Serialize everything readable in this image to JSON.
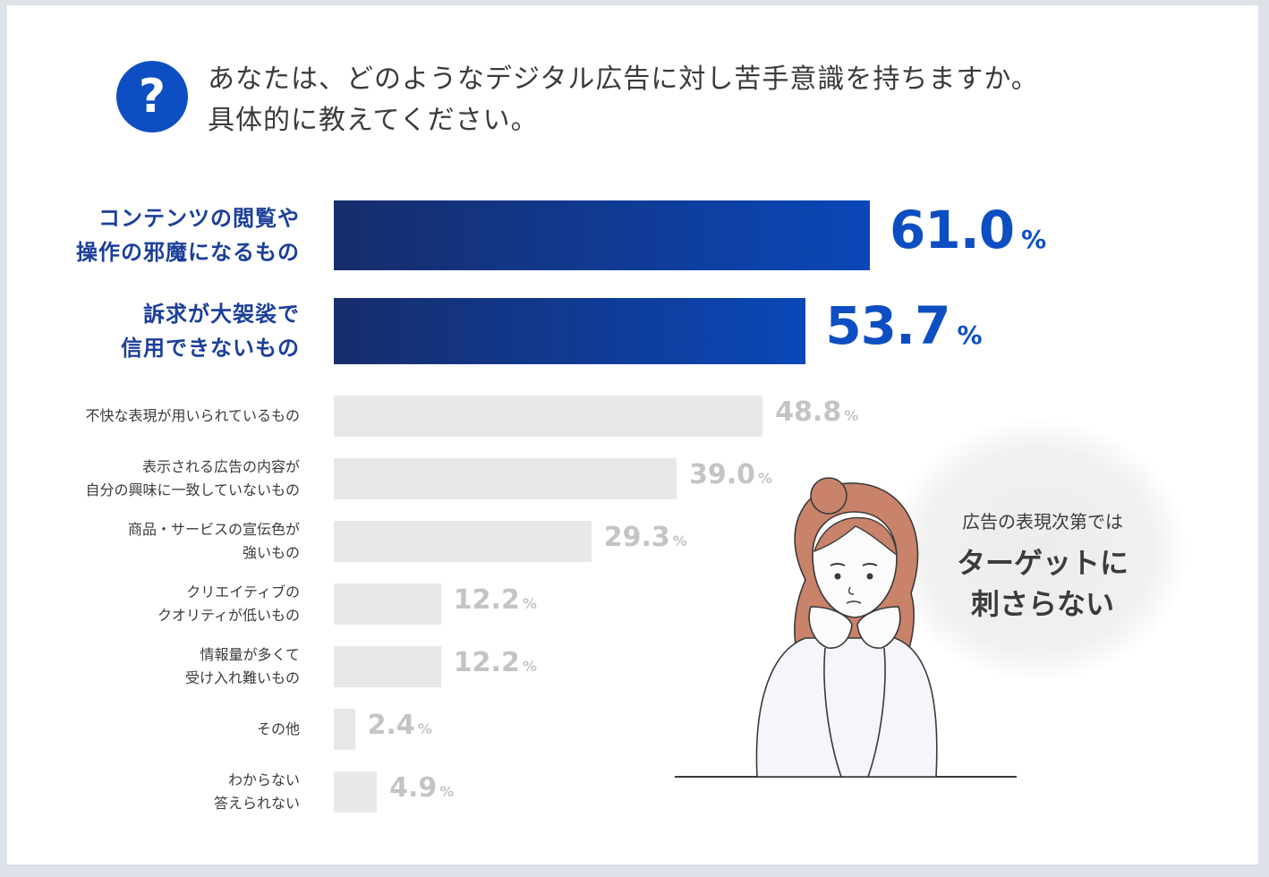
{
  "question": {
    "lines": [
      "あなたは、どのようなデジタル広告に対し苦手意識を持ちますか。",
      "具体的に教えてください。"
    ],
    "icon": "question-icon"
  },
  "chart_data": {
    "type": "bar",
    "orientation": "horizontal",
    "unit": "%",
    "xlim": [
      0,
      100
    ],
    "categories": [
      "コンテンツの閲覧や操作の邪魔になるもの",
      "訴求が大袈裟で信用できないもの",
      "不快な表現が用いられているもの",
      "表示される広告の内容が自分の興味に一致していないもの",
      "商品・サービスの宣伝色が強いもの",
      "クリエイティブのクオリティが低いもの",
      "情報量が多くて受け入れ難いもの",
      "その他",
      "わからない答えられない"
    ],
    "values": [
      61.0,
      53.7,
      48.8,
      39.0,
      29.3,
      12.2,
      12.2,
      2.4,
      4.9
    ],
    "bars": [
      {
        "label_lines": [
          "コンテンツの閲覧や",
          "操作の邪魔になるもの"
        ],
        "value": 61.0,
        "value_text": "61.0",
        "unit": "%",
        "highlight": true
      },
      {
        "label_lines": [
          "訴求が大袈裟で",
          "信用できないもの"
        ],
        "value": 53.7,
        "value_text": "53.7",
        "unit": "%",
        "highlight": true
      },
      {
        "label_lines": [
          "不快な表現が用いられているもの"
        ],
        "value": 48.8,
        "value_text": "48.8",
        "unit": "%",
        "highlight": false
      },
      {
        "label_lines": [
          "表示される広告の内容が",
          "自分の興味に一致していないもの"
        ],
        "value": 39.0,
        "value_text": "39.0",
        "unit": "%",
        "highlight": false
      },
      {
        "label_lines": [
          "商品・サービスの宣伝色が",
          "強いもの"
        ],
        "value": 29.3,
        "value_text": "29.3",
        "unit": "%",
        "highlight": false
      },
      {
        "label_lines": [
          "クリエイティブの",
          "クオリティが低いもの"
        ],
        "value": 12.2,
        "value_text": "12.2",
        "unit": "%",
        "highlight": false
      },
      {
        "label_lines": [
          "情報量が多くて",
          "受け入れ難いもの"
        ],
        "value": 12.2,
        "value_text": "12.2",
        "unit": "%",
        "highlight": false
      },
      {
        "label_lines": [
          "その他"
        ],
        "value": 2.4,
        "value_text": "2.4",
        "unit": "%",
        "highlight": false
      },
      {
        "label_lines": [
          "わからない",
          "答えられない"
        ],
        "value": 4.9,
        "value_text": "4.9",
        "unit": "%",
        "highlight": false
      }
    ],
    "colors": {
      "highlight_start": "#172d6b",
      "highlight_end": "#0a47b8",
      "highlight_text": "#0d4fc2",
      "highlight_label": "#1b3f99",
      "normal_bar": "#e8e8e8",
      "normal_value": "#c4c4c4",
      "normal_label": "#3b3b3b"
    }
  },
  "callout": {
    "small": "広告の表現次第では",
    "big_lines": [
      "ターゲットに",
      "刺さらない"
    ]
  }
}
